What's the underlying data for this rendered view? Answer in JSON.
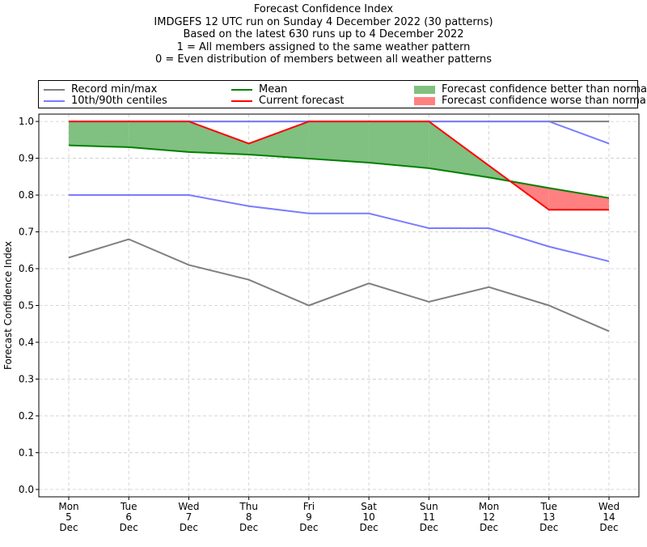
{
  "titles": [
    "Forecast Confidence Index",
    "IMDGEFS 12 UTC run on Sunday 4 December 2022 (30 patterns)",
    "Based on the latest 630 runs up to 4 December 2022",
    "1 = All members assigned to the same weather pattern",
    "0 = Even distribution of members between all weather patterns"
  ],
  "legend": {
    "record": "Record min/max",
    "centiles": "10th/90th centiles",
    "mean": "Mean",
    "current": "Current forecast",
    "better": "Forecast confidence better than normal",
    "worse": "Forecast confidence worse than normal"
  },
  "colors": {
    "record": "#7f7f7f",
    "centiles": "#7b7bff",
    "mean": "#008000",
    "current": "#ff0000",
    "better": "#80c080",
    "worse": "#ff8080",
    "grid": "#cccccc"
  },
  "chart_data": {
    "type": "line",
    "ylabel": "Forecast Confidence Index",
    "xlabel": "",
    "ylim": [
      0,
      1
    ],
    "yticks": [
      "0.0",
      "0.1",
      "0.2",
      "0.3",
      "0.4",
      "0.5",
      "0.6",
      "0.7",
      "0.8",
      "0.9",
      "1.0"
    ],
    "grid": true,
    "legend_position": "top",
    "categories": [
      [
        "Mon",
        "5",
        "Dec"
      ],
      [
        "Tue",
        "6",
        "Dec"
      ],
      [
        "Wed",
        "7",
        "Dec"
      ],
      [
        "Thu",
        "8",
        "Dec"
      ],
      [
        "Fri",
        "9",
        "Dec"
      ],
      [
        "Sat",
        "10",
        "Dec"
      ],
      [
        "Sun",
        "11",
        "Dec"
      ],
      [
        "Mon",
        "12",
        "Dec"
      ],
      [
        "Tue",
        "13",
        "Dec"
      ],
      [
        "Wed",
        "14",
        "Dec"
      ]
    ],
    "series": [
      {
        "name": "Record min/max",
        "key": "record_max",
        "values": [
          1.0,
          1.0,
          1.0,
          1.0,
          1.0,
          1.0,
          1.0,
          1.0,
          1.0,
          1.0
        ]
      },
      {
        "name": "Record min/max",
        "key": "record_min",
        "values": [
          0.63,
          0.68,
          0.61,
          0.57,
          0.5,
          0.56,
          0.51,
          0.55,
          0.5,
          0.43
        ]
      },
      {
        "name": "10th/90th centiles",
        "key": "p90",
        "values": [
          1.0,
          1.0,
          1.0,
          1.0,
          1.0,
          1.0,
          1.0,
          1.0,
          1.0,
          0.94
        ]
      },
      {
        "name": "10th/90th centiles",
        "key": "p10",
        "values": [
          0.8,
          0.8,
          0.8,
          0.77,
          0.75,
          0.75,
          0.71,
          0.71,
          0.66,
          0.62
        ]
      },
      {
        "name": "Mean",
        "key": "mean",
        "values": [
          0.935,
          0.93,
          0.917,
          0.91,
          0.899,
          0.888,
          0.873,
          0.848,
          0.819,
          0.792
        ]
      },
      {
        "name": "Current forecast",
        "key": "current",
        "values": [
          1.0,
          1.0,
          1.0,
          0.94,
          1.0,
          1.0,
          1.0,
          0.88,
          0.76,
          0.76
        ]
      }
    ]
  }
}
